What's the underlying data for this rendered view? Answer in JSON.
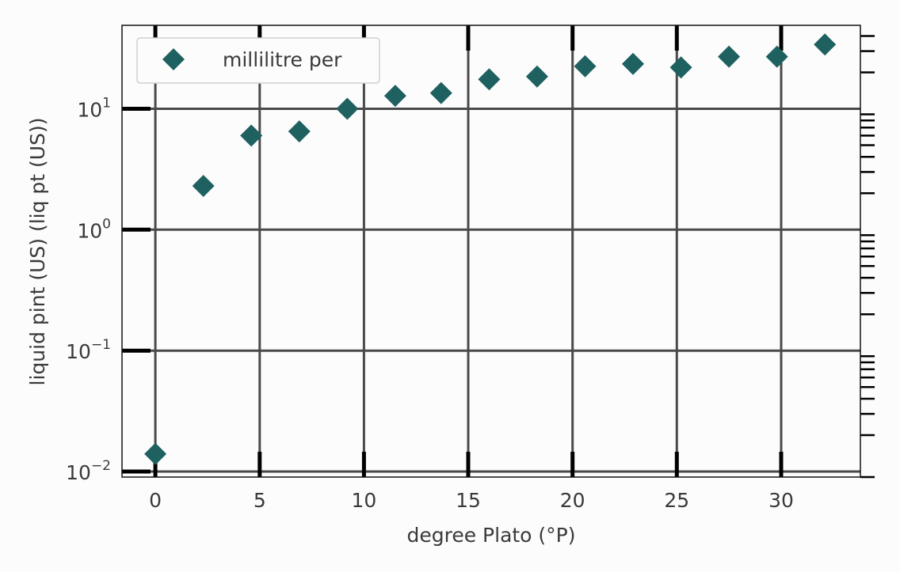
{
  "chart_data": {
    "type": "scatter",
    "title": "",
    "xlabel": "degree Plato (°P)",
    "ylabel": "liquid pint (US) (liq pt (US))",
    "xlim": [
      -1.6,
      33.8
    ],
    "ylim": [
      0.009,
      49
    ],
    "yscale": "log",
    "grid": true,
    "legend_position": "top-left",
    "x_ticks": [
      0,
      5,
      10,
      15,
      20,
      25,
      30
    ],
    "y_ticks": [
      0.01,
      0.1,
      1,
      10
    ],
    "y_tick_labels": [
      {
        "base": "10",
        "exp": "−2"
      },
      {
        "base": "10",
        "exp": "−1"
      },
      {
        "base": "10",
        "exp": "0"
      },
      {
        "base": "10",
        "exp": "1"
      }
    ],
    "series": [
      {
        "name": "millilitre per",
        "color": "#1f6060",
        "marker": "diamond",
        "x": [
          0.0,
          2.3,
          4.6,
          6.9,
          9.2,
          11.5,
          13.7,
          16.0,
          18.3,
          20.6,
          22.9,
          25.2,
          27.5,
          29.8,
          32.1
        ],
        "y": [
          0.014,
          2.3,
          6.0,
          6.5,
          10.0,
          12.8,
          13.5,
          17.5,
          18.5,
          22.5,
          23.5,
          22.0,
          27.0,
          27.0,
          34.0
        ]
      }
    ]
  }
}
